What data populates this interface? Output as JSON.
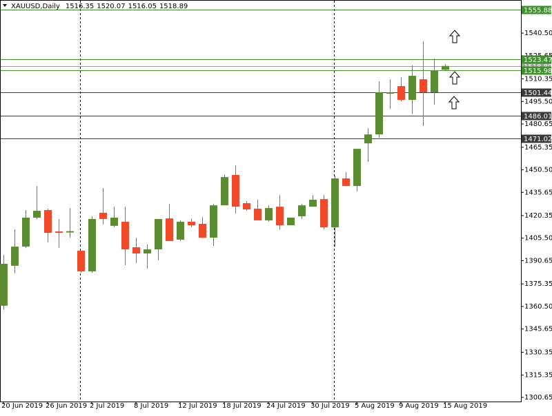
{
  "chart_data": {
    "type": "candlestick",
    "title": "XAUUSD,Daily",
    "categories": [
      "20 Jun 2019",
      null,
      null,
      null,
      "26 Jun 2019",
      null,
      null,
      null,
      "2 Jul 2019",
      null,
      null,
      null,
      "8 Jul 2019",
      null,
      null,
      null,
      "12 Jul 2019",
      null,
      null,
      null,
      "18 Jul 2019",
      null,
      null,
      null,
      "24 Jul 2019",
      null,
      null,
      null,
      "30 Jul 2019",
      null,
      null,
      null,
      "5 Aug 2019",
      null,
      null,
      null,
      "9 Aug 2019",
      null,
      null,
      null,
      "15 Aug 2019"
    ],
    "open": [
      1361.0,
      1387.3,
      1399.9,
      1419.0,
      1424.0,
      1409.9,
      1409.2,
      1397.2,
      1383.6,
      1422.2,
      1413.6,
      1416.3,
      1399.5,
      1395.4,
      1398.1,
      1418.5,
      1404.5,
      1416.3,
      1414.9,
      1405.8,
      1427.1,
      1447.1,
      1428.5,
      1424.9,
      1417.2,
      1426.2,
      1414.0,
      1419.9,
      1426.2,
      1431.2,
      1412.6,
      1444.8,
      1439.8,
      1467.9,
      1473.8,
      1500.6,
      1505.6,
      1496.5,
      1510.1,
      1501.5,
      1516.35
    ],
    "high": [
      1394.5,
      1411.3,
      1424.0,
      1439.8,
      1424.9,
      1418.0,
      1425.3,
      1397.2,
      1419.9,
      1438.5,
      1426.2,
      1426.2,
      1405.8,
      1401.3,
      1418.1,
      1428.0,
      1417.2,
      1418.5,
      1419.4,
      1428.0,
      1447.5,
      1453.4,
      1429.9,
      1430.8,
      1427.1,
      1433.9,
      1419.0,
      1428.0,
      1433.9,
      1433.9,
      1446.6,
      1448.9,
      1464.3,
      1477.9,
      1508.8,
      1510.1,
      1511.5,
      1519.2,
      1535.1,
      1523.7,
      1520.07
    ],
    "low": [
      1358.2,
      1382.3,
      1399.0,
      1418.0,
      1402.7,
      1399.0,
      1405.8,
      1382.7,
      1382.7,
      1414.5,
      1412.6,
      1387.7,
      1389.0,
      1385.4,
      1390.9,
      1403.6,
      1403.6,
      1412.6,
      1405.8,
      1400.4,
      1427.1,
      1421.7,
      1423.5,
      1417.2,
      1416.3,
      1411.3,
      1414.0,
      1418.1,
      1426.2,
      1411.3,
      1399.9,
      1439.8,
      1436.2,
      1455.7,
      1471.6,
      1490.6,
      1495.6,
      1487.4,
      1479.3,
      1493.3,
      1516.05
    ],
    "close": [
      1388.6,
      1399.9,
      1419.0,
      1423.5,
      1409.0,
      1409.0,
      1410.1,
      1383.6,
      1418.1,
      1418.1,
      1419.0,
      1398.1,
      1395.4,
      1398.1,
      1418.1,
      1403.6,
      1416.3,
      1414.0,
      1405.8,
      1427.1,
      1445.7,
      1426.2,
      1424.4,
      1417.2,
      1425.3,
      1414.0,
      1419.0,
      1427.1,
      1430.8,
      1412.6,
      1444.8,
      1439.8,
      1464.3,
      1473.8,
      1501.5,
      1501.5,
      1496.5,
      1512.4,
      1501.5,
      1516.0,
      1518.89
    ],
    "up_color": "#5b8c32",
    "down_color": "#f04a2a",
    "ylim": [
      1297.9,
      1562.3
    ],
    "yticks": [
      1300.65,
      1315.35,
      {
        "value": 1330.35,
        "label": "1330.35"
      },
      1345.65,
      {
        "value": 1360.5,
        "label": "1360.50"
      },
      1375.35,
      1390.65,
      {
        "value": 1405.5,
        "label": "1405.50"
      },
      1420.35,
      1435.65,
      {
        "value": 1450.5,
        "label": "1450.50"
      },
      1465.35,
      1480.65,
      {
        "value": 1495.5,
        "label": "1495.50"
      },
      1510.35,
      1525.65,
      {
        "value": 1540.5,
        "label": "1540.50"
      }
    ],
    "levels": [
      {
        "value": 1518.89,
        "color": "#9a9a9a"
      },
      {
        "value": 1555.88,
        "color": "#3f8f2e"
      },
      {
        "value": 1523.47,
        "color": "#3f8f2e"
      },
      {
        "value": 1515.98,
        "color": "#3f8f2e"
      },
      {
        "value": 1501.44,
        "color": "#3a3a3a"
      },
      {
        "value": 1486.01,
        "color": "#3a3a3a"
      },
      {
        "value": 1471.02,
        "color": "#3a3a3a"
      }
    ]
  }
}
